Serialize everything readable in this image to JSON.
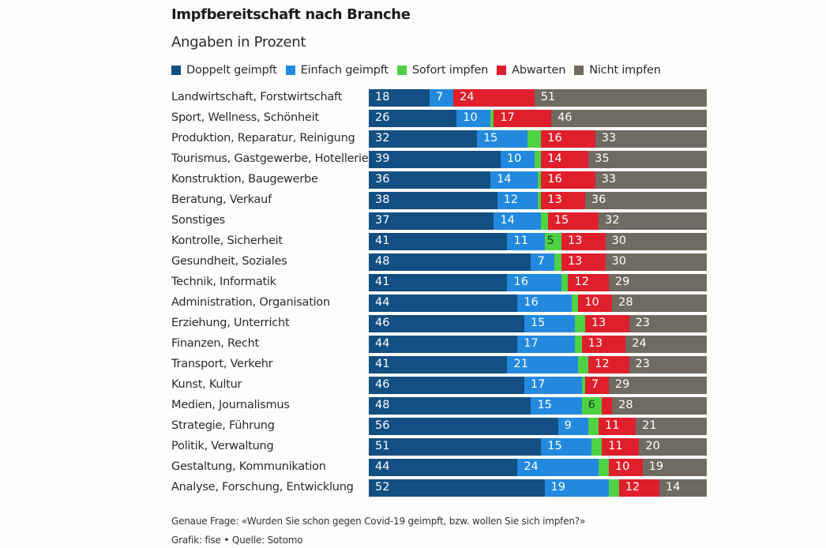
{
  "chart_data": {
    "type": "bar",
    "orientation": "horizontal",
    "stacked": true,
    "title": "Impfbereitschaft nach Branche",
    "subtitle": "Angaben in Prozent",
    "xlabel": "",
    "ylabel": "",
    "xlim": [
      0,
      100
    ],
    "grid": false,
    "legend_position": "top-left",
    "categories": [
      "Landwirtschaft, Forstwirtschaft",
      "Sport, Wellness, Schönheit",
      "Produktion, Reparatur, Reinigung",
      "Tourismus, Gastgewerbe, Hotellerie",
      "Konstruktion, Baugewerbe",
      "Beratung, Verkauf",
      "Sonstiges",
      "Kontrolle, Sicherheit",
      "Gesundheit, Soziales",
      "Technik, Informatik",
      "Administration, Organisation",
      "Erziehung, Unterricht",
      "Finanzen, Recht",
      "Transport, Verkehr",
      "Kunst, Kultur",
      "Medien, Journalismus",
      "Strategie, Führung",
      "Politik, Verwaltung",
      "Gestaltung, Kommunikation",
      "Analyse, Forschung, Entwicklung"
    ],
    "series": [
      {
        "name": "Doppelt geimpft",
        "color": "#134f82",
        "label_color": "#ffffff",
        "values": [
          18,
          26,
          32,
          39,
          36,
          38,
          37,
          41,
          48,
          41,
          44,
          46,
          44,
          41,
          46,
          48,
          56,
          51,
          44,
          52
        ],
        "labels": [
          "18",
          "26",
          "32",
          "39",
          "36",
          "38",
          "37",
          "41",
          "48",
          "41",
          "44",
          "46",
          "44",
          "41",
          "46",
          "48",
          "56",
          "51",
          "44",
          "52"
        ]
      },
      {
        "name": "Einfach geimpft",
        "color": "#2389df",
        "label_color": "#ffffff",
        "values": [
          7,
          10,
          15,
          10,
          14,
          12,
          14,
          11,
          7,
          16,
          16,
          15,
          17,
          21,
          17,
          15,
          9,
          15,
          24,
          19
        ],
        "labels": [
          "7",
          "10",
          "15",
          "10",
          "14",
          "12",
          "14",
          "11",
          "7",
          "16",
          "16",
          "15",
          "17",
          "21",
          "17",
          "15",
          "9",
          "15",
          "24",
          "19"
        ]
      },
      {
        "name": "Sofort impfen",
        "color": "#4fd144",
        "label_color": "#1b3d18",
        "values": [
          0,
          1,
          4,
          2,
          1,
          1,
          2,
          5,
          2,
          2,
          2,
          3,
          2,
          3,
          1,
          6,
          3,
          3,
          3,
          3
        ],
        "labels": [
          "",
          "",
          "",
          "",
          "",
          "",
          "",
          "5",
          "",
          "",
          "",
          "",
          "",
          "",
          "",
          "6",
          "",
          "",
          "",
          ""
        ]
      },
      {
        "name": "Abwarten",
        "color": "#e01f2c",
        "label_color": "#ffffff",
        "values": [
          24,
          17,
          16,
          14,
          16,
          13,
          15,
          13,
          13,
          12,
          10,
          13,
          13,
          12,
          7,
          3,
          11,
          11,
          10,
          12
        ],
        "labels": [
          "24",
          "17",
          "16",
          "14",
          "16",
          "13",
          "15",
          "13",
          "13",
          "12",
          "10",
          "13",
          "13",
          "12",
          "7",
          "",
          "11",
          "11",
          "10",
          "12"
        ]
      },
      {
        "name": "Nicht impfen",
        "color": "#6f6b62",
        "label_color": "#ffffff",
        "values": [
          51,
          46,
          33,
          35,
          33,
          36,
          32,
          30,
          30,
          29,
          28,
          23,
          24,
          23,
          29,
          28,
          21,
          20,
          19,
          14
        ],
        "labels": [
          "51",
          "46",
          "33",
          "35",
          "33",
          "36",
          "32",
          "30",
          "30",
          "29",
          "28",
          "23",
          "24",
          "23",
          "29",
          "28",
          "21",
          "20",
          "19",
          "14"
        ]
      }
    ]
  },
  "footer": {
    "question": "Genaue Frage: «Wurden Sie schon gegen Covid-19 geimpft, bzw. wollen Sie sich impfen?»",
    "credit": "Grafik: fise • Quelle: Sotomo"
  }
}
